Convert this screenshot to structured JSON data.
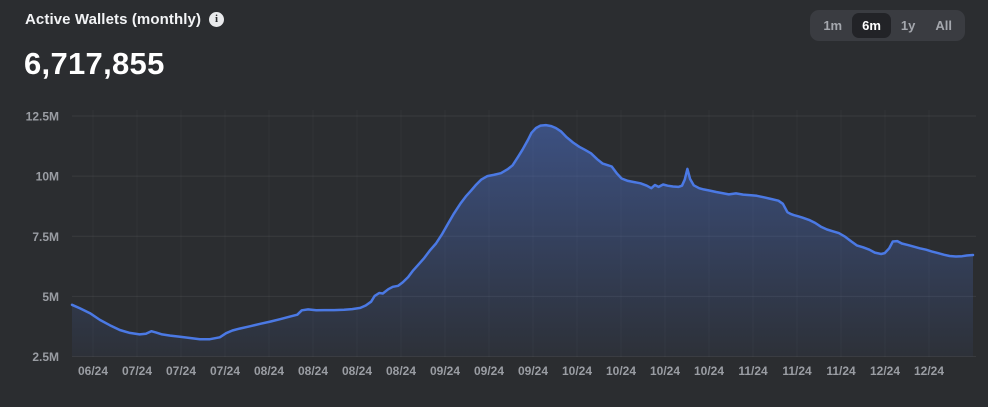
{
  "header": {
    "title": "Active Wallets (monthly)",
    "value": "6,717,855",
    "info_icon_glyph": "i"
  },
  "range_selector": {
    "options": [
      {
        "label": "1m",
        "selected": false
      },
      {
        "label": "6m",
        "selected": true
      },
      {
        "label": "1y",
        "selected": false
      },
      {
        "label": "All",
        "selected": false
      }
    ]
  },
  "theme": {
    "background": "#2b2d30",
    "text_primary": "#ffffff",
    "text_secondary": "#9a9da3",
    "selected_button_bg": "#222327",
    "selector_bg": "#3a3c41"
  },
  "chart_data": {
    "type": "area",
    "title": "Active Wallets (monthly)",
    "current_value": 6717855,
    "unit": "wallets",
    "line_color": "#4b79e4",
    "fill_color": "#4f77d9",
    "grid": true,
    "legend": false,
    "y_ticks": [
      "2.5M",
      "5M",
      "7.5M",
      "10M",
      "12.5M"
    ],
    "y_tick_values_millions": [
      2.5,
      5,
      7.5,
      10,
      12.5
    ],
    "ylim_millions": [
      2.5,
      13.1
    ],
    "x_ticks": [
      "06/24",
      "07/24",
      "07/24",
      "07/24",
      "08/24",
      "08/24",
      "08/24",
      "08/24",
      "09/24",
      "09/24",
      "09/24",
      "10/24",
      "10/24",
      "10/24",
      "10/24",
      "11/24",
      "11/24",
      "11/24",
      "12/24",
      "12/24"
    ],
    "points_frac_vs_millions": [
      [
        0,
        4.65
      ],
      [
        0.009,
        4.5
      ],
      [
        0.02,
        4.3
      ],
      [
        0.031,
        4.02
      ],
      [
        0.042,
        3.8
      ],
      [
        0.053,
        3.6
      ],
      [
        0.064,
        3.48
      ],
      [
        0.075,
        3.42
      ],
      [
        0.082,
        3.45
      ],
      [
        0.088,
        3.55
      ],
      [
        0.093,
        3.5
      ],
      [
        0.1,
        3.42
      ],
      [
        0.109,
        3.37
      ],
      [
        0.12,
        3.32
      ],
      [
        0.131,
        3.27
      ],
      [
        0.142,
        3.22
      ],
      [
        0.153,
        3.22
      ],
      [
        0.164,
        3.3
      ],
      [
        0.171,
        3.47
      ],
      [
        0.178,
        3.58
      ],
      [
        0.186,
        3.66
      ],
      [
        0.198,
        3.76
      ],
      [
        0.209,
        3.86
      ],
      [
        0.22,
        3.95
      ],
      [
        0.231,
        4.05
      ],
      [
        0.242,
        4.16
      ],
      [
        0.25,
        4.24
      ],
      [
        0.255,
        4.42
      ],
      [
        0.262,
        4.46
      ],
      [
        0.271,
        4.42
      ],
      [
        0.28,
        4.43
      ],
      [
        0.291,
        4.43
      ],
      [
        0.302,
        4.44
      ],
      [
        0.311,
        4.47
      ],
      [
        0.32,
        4.52
      ],
      [
        0.326,
        4.62
      ],
      [
        0.332,
        4.78
      ],
      [
        0.336,
        5.02
      ],
      [
        0.341,
        5.14
      ],
      [
        0.345,
        5.12
      ],
      [
        0.351,
        5.3
      ],
      [
        0.356,
        5.4
      ],
      [
        0.362,
        5.44
      ],
      [
        0.367,
        5.58
      ],
      [
        0.373,
        5.8
      ],
      [
        0.378,
        6.05
      ],
      [
        0.384,
        6.3
      ],
      [
        0.391,
        6.6
      ],
      [
        0.397,
        6.9
      ],
      [
        0.404,
        7.2
      ],
      [
        0.411,
        7.6
      ],
      [
        0.417,
        8.0
      ],
      [
        0.424,
        8.45
      ],
      [
        0.431,
        8.85
      ],
      [
        0.437,
        9.15
      ],
      [
        0.443,
        9.4
      ],
      [
        0.448,
        9.62
      ],
      [
        0.454,
        9.85
      ],
      [
        0.461,
        10.0
      ],
      [
        0.468,
        10.05
      ],
      [
        0.476,
        10.12
      ],
      [
        0.484,
        10.3
      ],
      [
        0.489,
        10.45
      ],
      [
        0.495,
        10.8
      ],
      [
        0.5,
        11.1
      ],
      [
        0.506,
        11.5
      ],
      [
        0.51,
        11.8
      ],
      [
        0.515,
        12.0
      ],
      [
        0.52,
        12.1
      ],
      [
        0.526,
        12.12
      ],
      [
        0.532,
        12.08
      ],
      [
        0.537,
        12.0
      ],
      [
        0.543,
        11.85
      ],
      [
        0.549,
        11.62
      ],
      [
        0.556,
        11.4
      ],
      [
        0.563,
        11.22
      ],
      [
        0.569,
        11.1
      ],
      [
        0.576,
        10.95
      ],
      [
        0.583,
        10.7
      ],
      [
        0.589,
        10.52
      ],
      [
        0.595,
        10.45
      ],
      [
        0.599,
        10.4
      ],
      [
        0.605,
        10.1
      ],
      [
        0.61,
        9.9
      ],
      [
        0.617,
        9.8
      ],
      [
        0.624,
        9.75
      ],
      [
        0.631,
        9.7
      ],
      [
        0.638,
        9.6
      ],
      [
        0.643,
        9.5
      ],
      [
        0.647,
        9.63
      ],
      [
        0.651,
        9.55
      ],
      [
        0.656,
        9.65
      ],
      [
        0.661,
        9.6
      ],
      [
        0.667,
        9.57
      ],
      [
        0.673,
        9.55
      ],
      [
        0.677,
        9.6
      ],
      [
        0.68,
        9.85
      ],
      [
        0.683,
        10.3
      ],
      [
        0.686,
        9.88
      ],
      [
        0.69,
        9.62
      ],
      [
        0.696,
        9.5
      ],
      [
        0.701,
        9.45
      ],
      [
        0.708,
        9.4
      ],
      [
        0.715,
        9.34
      ],
      [
        0.721,
        9.3
      ],
      [
        0.729,
        9.24
      ],
      [
        0.737,
        9.28
      ],
      [
        0.745,
        9.23
      ],
      [
        0.752,
        9.21
      ],
      [
        0.76,
        9.18
      ],
      [
        0.768,
        9.12
      ],
      [
        0.776,
        9.05
      ],
      [
        0.784,
        8.98
      ],
      [
        0.789,
        8.85
      ],
      [
        0.794,
        8.5
      ],
      [
        0.798,
        8.42
      ],
      [
        0.801,
        8.38
      ],
      [
        0.806,
        8.33
      ],
      [
        0.811,
        8.27
      ],
      [
        0.818,
        8.18
      ],
      [
        0.825,
        8.05
      ],
      [
        0.831,
        7.9
      ],
      [
        0.838,
        7.78
      ],
      [
        0.845,
        7.7
      ],
      [
        0.851,
        7.63
      ],
      [
        0.858,
        7.48
      ],
      [
        0.865,
        7.28
      ],
      [
        0.871,
        7.12
      ],
      [
        0.878,
        7.04
      ],
      [
        0.885,
        6.94
      ],
      [
        0.891,
        6.82
      ],
      [
        0.898,
        6.76
      ],
      [
        0.902,
        6.8
      ],
      [
        0.907,
        7.0
      ],
      [
        0.911,
        7.28
      ],
      [
        0.916,
        7.3
      ],
      [
        0.921,
        7.2
      ],
      [
        0.928,
        7.13
      ],
      [
        0.934,
        7.07
      ],
      [
        0.941,
        7.0
      ],
      [
        0.948,
        6.94
      ],
      [
        0.954,
        6.87
      ],
      [
        0.961,
        6.8
      ],
      [
        0.968,
        6.73
      ],
      [
        0.974,
        6.68
      ],
      [
        0.981,
        6.66
      ],
      [
        0.988,
        6.67
      ],
      [
        0.993,
        6.7
      ],
      [
        1,
        6.72
      ]
    ]
  }
}
